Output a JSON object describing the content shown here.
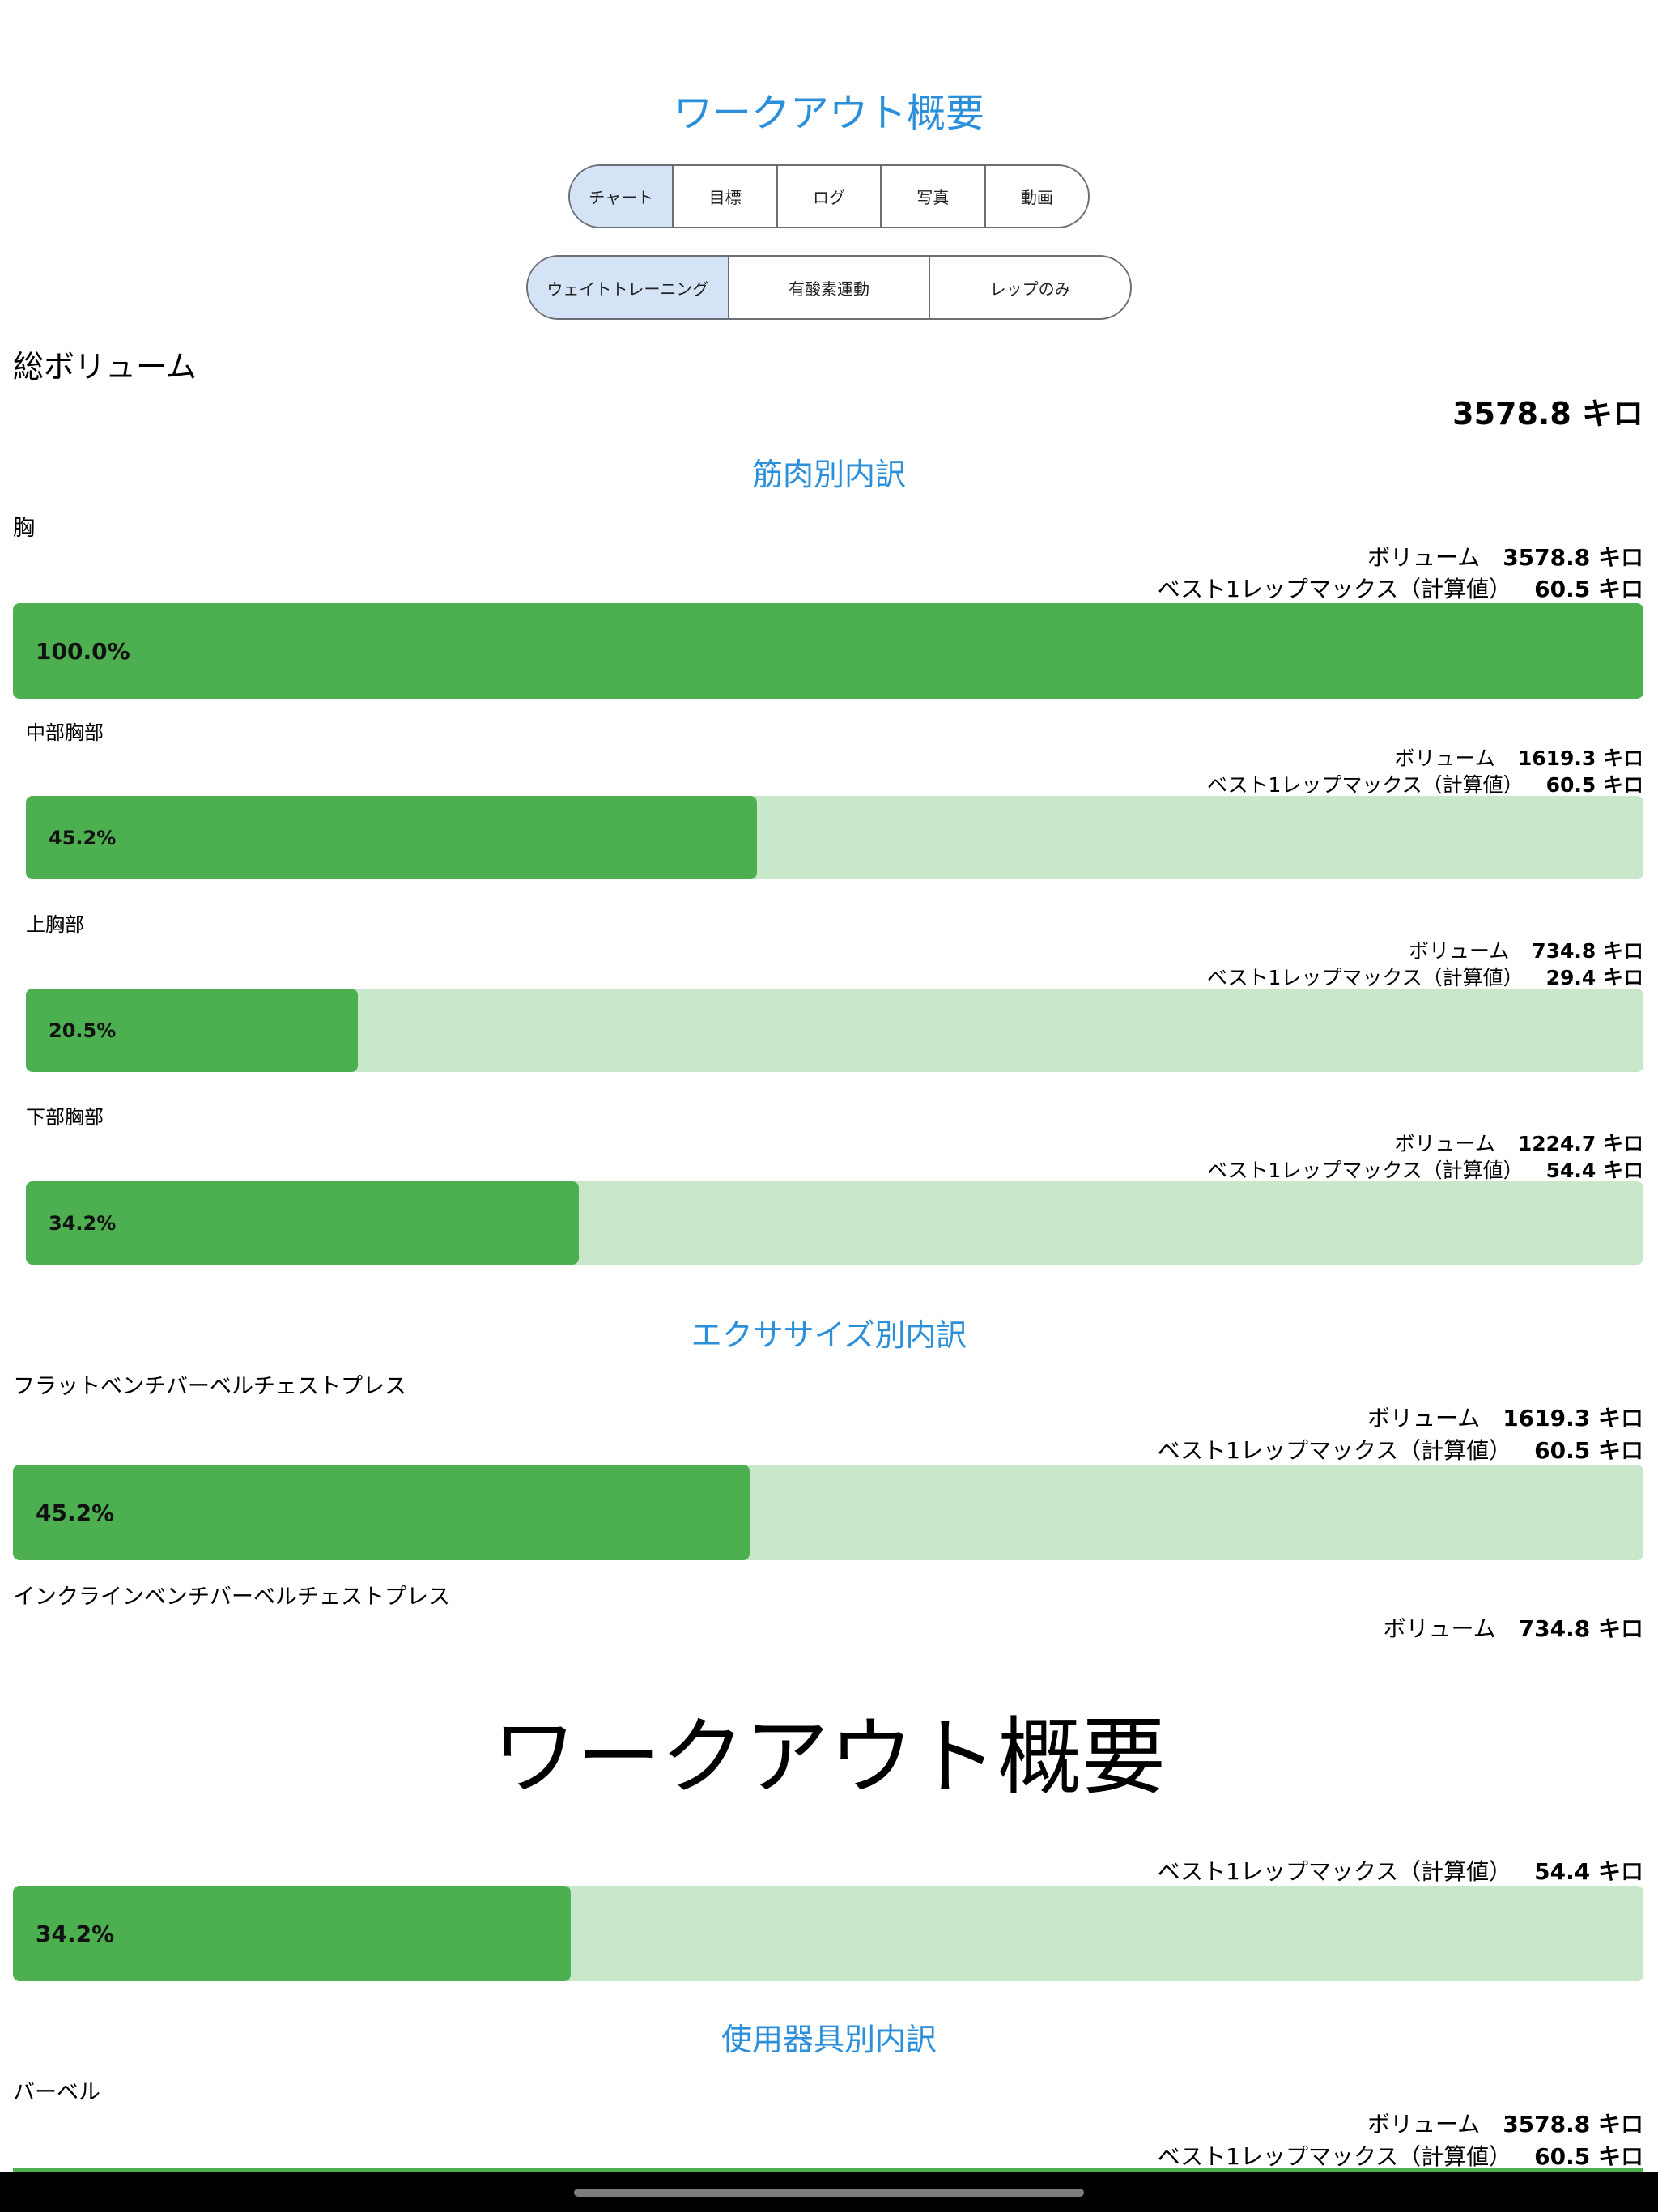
{
  "header": {
    "title": "ワークアウト概要"
  },
  "tabs": [
    {
      "label": "チャート",
      "selected": true
    },
    {
      "label": "目標",
      "selected": false
    },
    {
      "label": "ログ",
      "selected": false
    },
    {
      "label": "写真",
      "selected": false
    },
    {
      "label": "動画",
      "selected": false
    }
  ],
  "type_tabs": [
    {
      "label": "ウェイトトレーニング",
      "selected": true
    },
    {
      "label": "有酸素運動",
      "selected": false
    },
    {
      "label": "レップのみ",
      "selected": false
    }
  ],
  "total": {
    "label": "総ボリューム",
    "value": "3578.8 キロ"
  },
  "muscle": {
    "title": "筋肉別内訳",
    "groups": [
      {
        "name": "胸",
        "volume_label": "ボリューム",
        "volume": "3578.8 キロ",
        "rm_label": "ベスト1レップマックス（計算値）",
        "rm": "60.5 キロ",
        "percent_text": "100.0%",
        "fraction": 1.0
      }
    ],
    "subgroups": [
      {
        "name": "中部胸部",
        "volume_label": "ボリューム",
        "volume": "1619.3 キロ",
        "rm_label": "ベスト1レップマックス（計算値）",
        "rm": "60.5 キロ",
        "percent_text": "45.2%",
        "fraction": 0.452
      },
      {
        "name": "上胸部",
        "volume_label": "ボリューム",
        "volume": "734.8 キロ",
        "rm_label": "ベスト1レップマックス（計算値）",
        "rm": "29.4 キロ",
        "percent_text": "20.5%",
        "fraction": 0.205
      },
      {
        "name": "下部胸部",
        "volume_label": "ボリューム",
        "volume": "1224.7 キロ",
        "rm_label": "ベスト1レップマックス（計算値）",
        "rm": "54.4 キロ",
        "percent_text": "34.2%",
        "fraction": 0.342
      }
    ]
  },
  "exercise": {
    "title": "エクササイズ別内訳",
    "items": [
      {
        "name": "フラットベンチバーベルチェストプレス",
        "volume_label": "ボリューム",
        "volume": "1619.3 キロ",
        "rm_label": "ベスト1レップマックス（計算値）",
        "rm": "60.5 キロ",
        "percent_text": "45.2%",
        "fraction": 0.452
      },
      {
        "name": "インクラインベンチバーベルチェストプレス",
        "volume_label": "ボリューム",
        "volume": "734.8 キロ"
      }
    ]
  },
  "sheet": {
    "title": "ワークアウト概要"
  },
  "lower": {
    "rm_label": "ベスト1レップマックス（計算値）",
    "rm": "54.4 キロ",
    "percent_text": "34.2%",
    "fraction": 0.342
  },
  "equipment": {
    "title": "使用器具別内訳",
    "items": [
      {
        "name": "バーベル",
        "volume_label": "ボリューム",
        "volume": "3578.8 キロ",
        "rm_label": "ベスト1レップマックス（計算値）",
        "rm": "60.5 キロ"
      }
    ]
  }
}
